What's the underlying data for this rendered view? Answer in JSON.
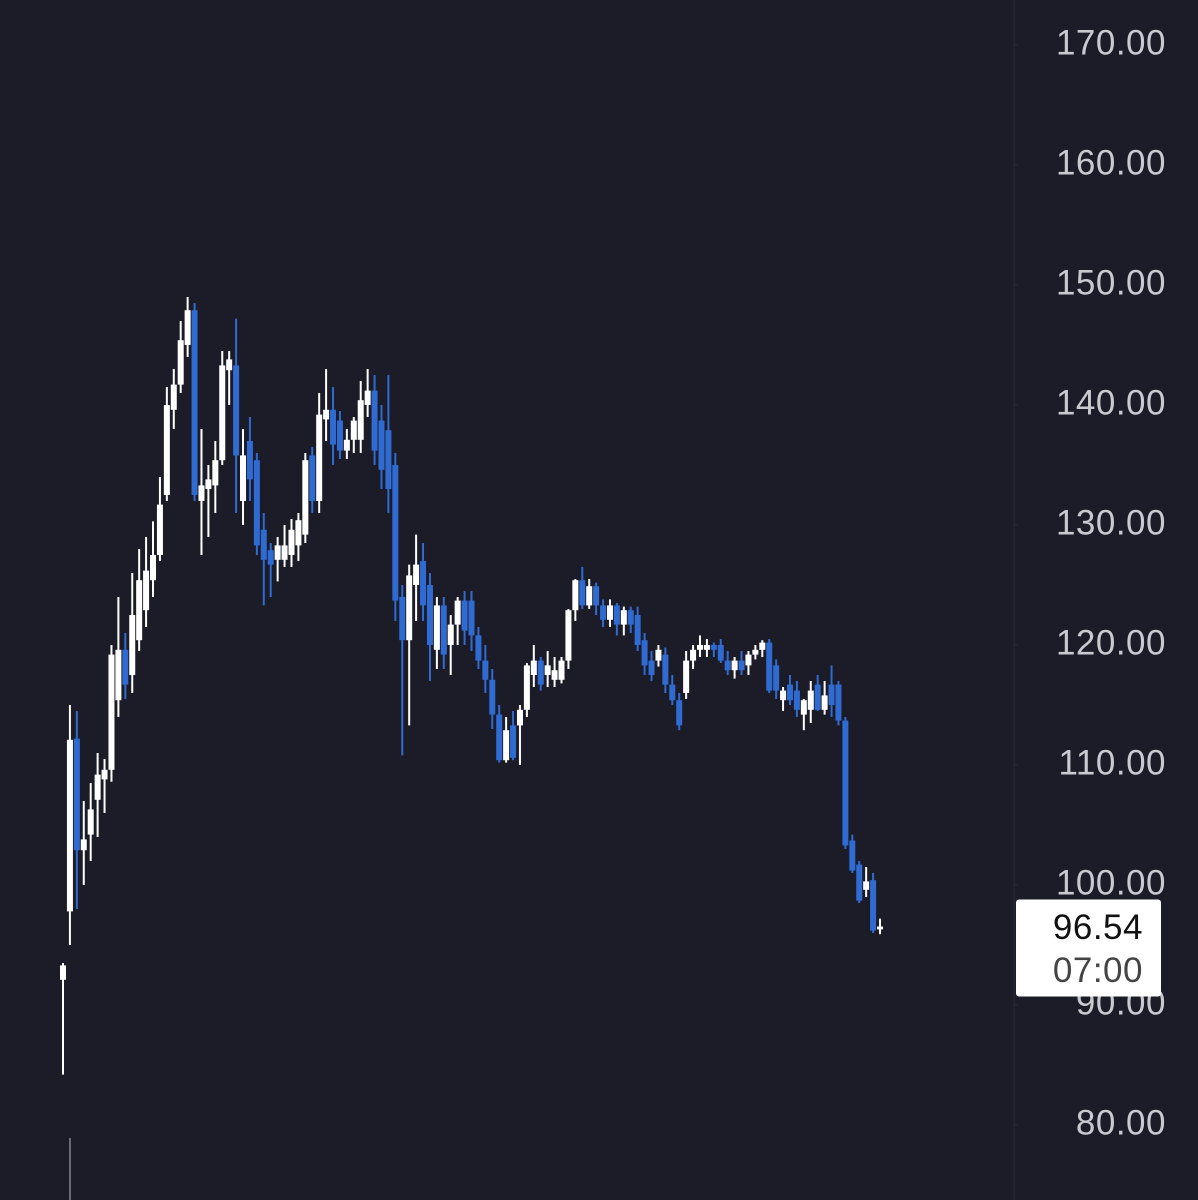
{
  "chart_data": {
    "type": "candlestick",
    "up_color": "#ffffff",
    "down_color": "#2f6bd1",
    "ylim": [
      73.75,
      173.75
    ],
    "yticks": [
      {
        "value": 170,
        "label": "170.00"
      },
      {
        "value": 160,
        "label": "160.00"
      },
      {
        "value": 150,
        "label": "150.00"
      },
      {
        "value": 140,
        "label": "140.00"
      },
      {
        "value": 130,
        "label": "130.00"
      },
      {
        "value": 120,
        "label": "120.00"
      },
      {
        "value": 110,
        "label": "110.00"
      },
      {
        "value": 100,
        "label": "100.00"
      },
      {
        "value": 90,
        "label": "90.00"
      },
      {
        "value": 80,
        "label": "80.00"
      }
    ],
    "open": [
      92.1,
      97.8,
      112.2,
      102.9,
      104.2,
      107.1,
      108.8,
      109.6,
      115.4,
      119.6,
      117.5,
      120.4,
      122.9,
      125.4,
      127.5,
      132.5,
      139.6,
      141.7,
      145,
      147.9,
      132,
      133,
      133.3,
      135.4,
      142.9,
      143.3,
      132,
      137,
      135.4,
      129.6,
      127.9,
      127.1,
      127.1,
      127.5,
      128.3,
      129.2,
      135.8,
      132,
      138.8,
      139.6,
      138.7,
      136.2,
      137.1,
      137.1,
      140,
      141.2,
      138.7,
      137.9,
      135,
      124,
      120.4,
      125,
      127,
      125,
      119.6,
      123.3,
      120,
      121.7,
      123.7,
      123.7,
      120.8,
      118.7,
      117.1,
      114.2,
      110.4,
      113.3,
      113.3,
      114.6,
      117.5,
      118.7,
      117.5,
      117.1,
      117.1,
      118.7,
      122.9,
      125.4,
      123.3,
      124.9,
      123.3,
      122.1,
      123.3,
      121.7,
      122.9,
      122.5,
      120.4,
      118.7,
      118.7,
      119.2,
      116.7,
      115.4,
      116,
      118.7,
      119.6,
      119.6,
      120,
      120,
      118.7,
      117.9,
      118.7,
      118.3,
      119.2,
      119.6,
      120.2,
      118.3,
      115.4,
      116.7,
      116.2,
      114.2,
      114.6,
      116.7,
      114.6,
      116.7,
      116.7,
      113.7,
      103.7,
      101.7,
      99.6,
      100.4,
      96.3
    ],
    "high": [
      93.5,
      115,
      114.5,
      107,
      108.5,
      111,
      110.5,
      120,
      124,
      121,
      126,
      128,
      129,
      130.3,
      134,
      141.5,
      143,
      147,
      149,
      148.5,
      138,
      135,
      137,
      144.5,
      144.5,
      147.2,
      138,
      139,
      136,
      131,
      128.5,
      129,
      130,
      130.5,
      131,
      136,
      136.5,
      141,
      143,
      141.5,
      139.5,
      138,
      139,
      142,
      143,
      142.5,
      140,
      142.5,
      136,
      125,
      126.7,
      129.2,
      128.5,
      126,
      124,
      124,
      122.5,
      124,
      124.5,
      124.5,
      121.5,
      120,
      118,
      115,
      114,
      114.5,
      115,
      118.5,
      120,
      119,
      119.5,
      119,
      119,
      123,
      125.5,
      126.5,
      125.5,
      125.2,
      123.8,
      123.8,
      123.5,
      123.2,
      123.2,
      123.2,
      121,
      119.5,
      120,
      119.8,
      117.5,
      116,
      119.5,
      120,
      120.8,
      120.5,
      120.2,
      120.5,
      119.5,
      119,
      119.5,
      119.5,
      120,
      120.4,
      120.5,
      118.8,
      116.5,
      117.5,
      117,
      115.5,
      117,
      117.5,
      117,
      118.3,
      117,
      114,
      104.2,
      102,
      101.5,
      101,
      97.2
    ],
    "low": [
      84.2,
      95,
      98,
      100,
      102,
      104,
      106,
      108.6,
      114,
      115.5,
      116,
      119.5,
      121.5,
      124,
      127,
      132,
      138,
      141,
      144,
      132,
      127.5,
      129,
      131,
      135,
      140,
      131,
      130,
      132,
      127.5,
      123.3,
      124,
      125.3,
      126.5,
      126.5,
      127,
      128.5,
      131,
      131,
      137,
      135,
      135.5,
      135.5,
      136,
      136,
      139,
      135,
      133,
      131,
      122,
      110.8,
      113.3,
      122,
      122,
      117,
      118,
      118,
      117.5,
      120,
      120,
      119.5,
      118,
      116,
      113,
      110.2,
      110.2,
      110.4,
      110,
      114,
      116.5,
      116.2,
      116.5,
      116.5,
      116.8,
      118,
      122,
      123,
      123,
      122.5,
      121.5,
      121.5,
      120.8,
      120.8,
      121,
      119.5,
      117.5,
      117,
      118.2,
      116,
      115,
      112.9,
      115.5,
      118,
      119,
      119,
      119,
      118.5,
      117.5,
      117.2,
      117.5,
      117.5,
      118.8,
      119,
      116,
      115.5,
      114.5,
      115,
      114,
      112.9,
      113.5,
      114.5,
      114.2,
      114,
      113.3,
      103,
      101,
      98.5,
      99,
      96,
      95.9
    ],
    "close": [
      93.3,
      112.1,
      102.9,
      103.8,
      106.3,
      109.2,
      109.6,
      119.2,
      119.6,
      116.7,
      122.5,
      125.4,
      126.2,
      127.5,
      131.7,
      140,
      141.7,
      145.4,
      147.9,
      132.5,
      133.3,
      133.8,
      135.4,
      143.3,
      143.8,
      135.8,
      135.8,
      133.8,
      128.3,
      127.1,
      126.7,
      128.3,
      128.3,
      129.6,
      130.4,
      135.4,
      132,
      139.2,
      139.6,
      136.7,
      136.2,
      137.1,
      138.7,
      140.4,
      141.2,
      136.2,
      134.6,
      133,
      123.7,
      120.4,
      125.8,
      126.7,
      123.3,
      120,
      123.3,
      119.2,
      121.7,
      123.7,
      121.2,
      120.8,
      118.7,
      117.1,
      114.2,
      110.4,
      112.9,
      110.6,
      114.6,
      118.3,
      118.7,
      116.7,
      118.3,
      117.9,
      118.7,
      122.9,
      125.4,
      123.3,
      124.9,
      123.3,
      122.1,
      123.3,
      121.7,
      122.9,
      121.7,
      120,
      118.3,
      117.5,
      119.6,
      116.7,
      115.4,
      113.3,
      118.7,
      119.6,
      120,
      120,
      119.6,
      118.7,
      117.9,
      118.7,
      117.9,
      119.2,
      119.6,
      120.2,
      116.2,
      116.2,
      116.2,
      115.4,
      114.6,
      115.4,
      116.2,
      114.6,
      115.8,
      115,
      113.7,
      103.3,
      101.2,
      98.7,
      100.3,
      96.2,
      96.54
    ],
    "last_price": 96.54,
    "countdown": "07:00"
  }
}
